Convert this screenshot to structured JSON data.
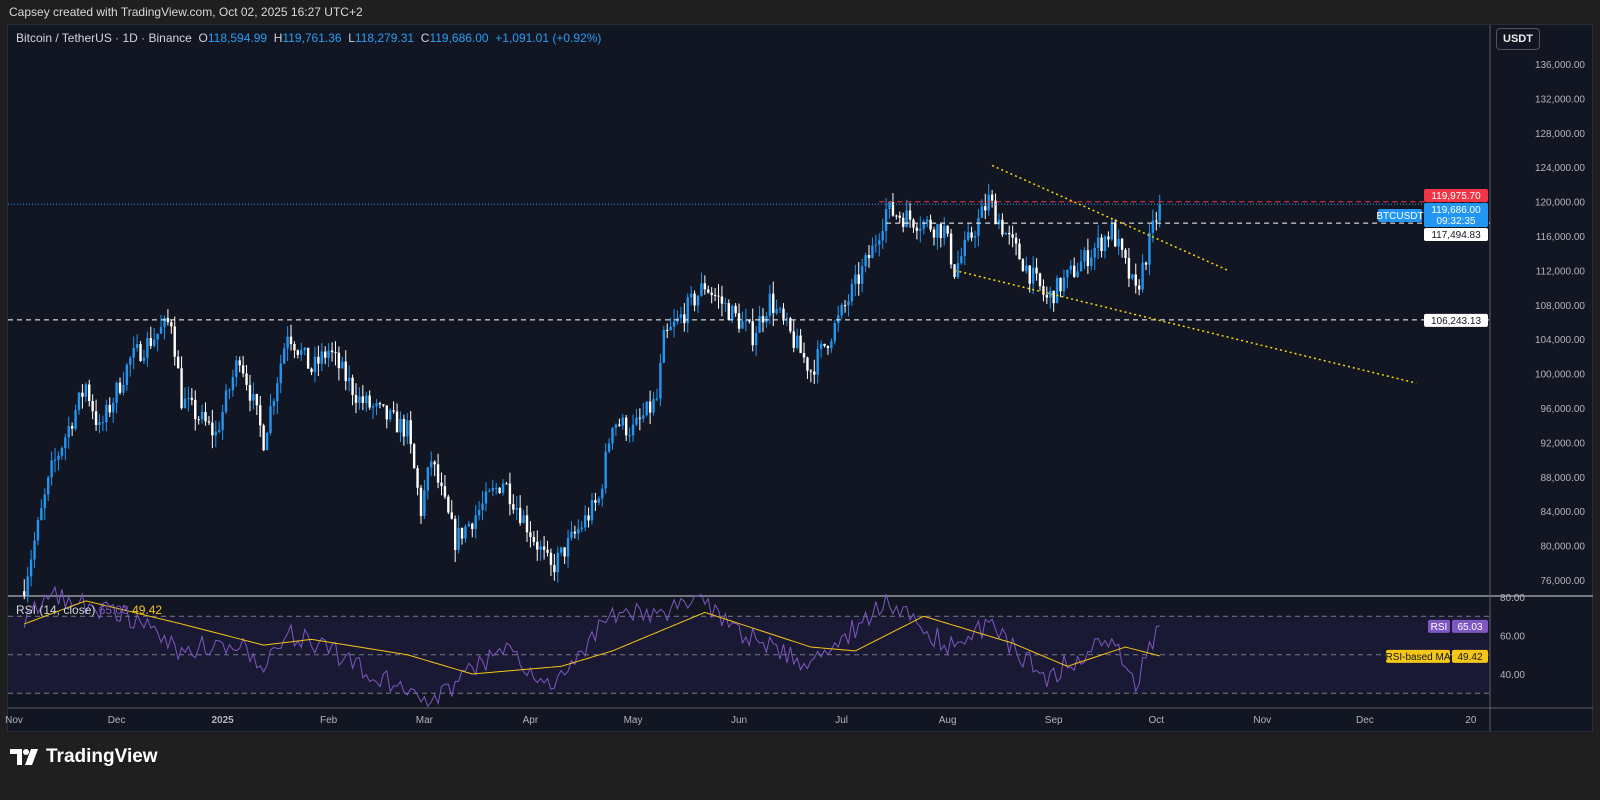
{
  "credit": "Capsey created with TradingView.com, Oct 02, 2025 16:27 UTC+2",
  "legend": {
    "symbol": "Bitcoin / TetherUS · 1D · Binance",
    "o_label": "O",
    "o": "118,594.99",
    "h_label": "H",
    "h": "119,761.36",
    "l_label": "L",
    "l": "118,279.31",
    "c_label": "C",
    "c": "119,686.00",
    "change": "+1,091.01 (+0.92%)"
  },
  "currency_button": "USDT",
  "rsi_legend": {
    "name": "RSI (14, close)",
    "rsi": "65.03",
    "ma": "49.42"
  },
  "price_tags": {
    "high_line": "119,975.70",
    "last": "119,686.00",
    "countdown": "09:32:35",
    "symbol": "BTCUSDT",
    "level1": "117,494.83",
    "level2": "106,243.13",
    "rsi_tag": "RSI",
    "rsi_val": "65.03",
    "ma_tag": "RSI-based MA",
    "ma_val": "49.42"
  },
  "footer": {
    "brand": "TradingView"
  },
  "colors": {
    "up": "#2196f3",
    "down": "#ffffff",
    "trendline": "#f5d90a",
    "rsi": "#7e57c2",
    "rsi_ma": "#f5c518",
    "high_line": "#f23645",
    "last": "#2196f3"
  },
  "chart_data": {
    "type": "candlestick",
    "ylim": [
      74000,
      138000
    ],
    "yticks": [
      "136,000.00",
      "132,000.00",
      "128,000.00",
      "124,000.00",
      "120,000.00",
      "116,000.00",
      "112,000.00",
      "108,000.00",
      "104,000.00",
      "100,000.00",
      "96,000.00",
      "92,000.00",
      "88,000.00",
      "84,000.00",
      "80,000.00",
      "76,000.00"
    ],
    "xticks": [
      "Nov",
      "Dec",
      "2025",
      "Feb",
      "Mar",
      "Apr",
      "May",
      "Jun",
      "Jul",
      "Aug",
      "Sep",
      "Oct",
      "Nov",
      "Dec",
      "20"
    ],
    "close_path": [
      [
        "2024-11-04",
        75500
      ],
      [
        "2024-11-12",
        88800
      ],
      [
        "2024-11-22",
        98700
      ],
      [
        "2024-11-26",
        93400
      ],
      [
        "2024-12-05",
        101600
      ],
      [
        "2024-12-17",
        106200
      ],
      [
        "2024-12-20",
        97000
      ],
      [
        "2024-12-30",
        92900
      ],
      [
        "2025-01-06",
        102200
      ],
      [
        "2025-01-13",
        92300
      ],
      [
        "2025-01-20",
        105000
      ],
      [
        "2025-01-27",
        100400
      ],
      [
        "2025-02-01",
        102700
      ],
      [
        "2025-02-10",
        97000
      ],
      [
        "2025-02-24",
        93400
      ],
      [
        "2025-02-28",
        84100
      ],
      [
        "2025-03-03",
        90000
      ],
      [
        "2025-03-10",
        80600
      ],
      [
        "2025-03-24",
        87600
      ],
      [
        "2025-04-07",
        77200
      ],
      [
        "2025-04-21",
        85300
      ],
      [
        "2025-04-25",
        94600
      ],
      [
        "2025-05-01",
        93400
      ],
      [
        "2025-05-08",
        97000
      ],
      [
        "2025-05-10",
        103900
      ],
      [
        "2025-05-22",
        110300
      ],
      [
        "2025-06-05",
        104500
      ],
      [
        "2025-06-10",
        108600
      ],
      [
        "2025-06-22",
        100400
      ],
      [
        "2025-06-30",
        106200
      ],
      [
        "2025-07-10",
        114400
      ],
      [
        "2025-07-14",
        119000
      ],
      [
        "2025-07-31",
        116700
      ],
      [
        "2025-08-03",
        112000
      ],
      [
        "2025-08-13",
        120200
      ],
      [
        "2025-08-19",
        115500
      ],
      [
        "2025-08-30",
        108600
      ],
      [
        "2025-09-18",
        116700
      ],
      [
        "2025-09-25",
        109300
      ],
      [
        "2025-10-02",
        119686
      ]
    ],
    "rsi_path": [
      [
        "2024-11-04",
        70
      ],
      [
        "2024-11-12",
        82
      ],
      [
        "2024-11-22",
        76
      ],
      [
        "2024-12-05",
        70
      ],
      [
        "2024-12-20",
        52
      ],
      [
        "2025-01-06",
        58
      ],
      [
        "2025-01-13",
        45
      ],
      [
        "2025-01-20",
        62
      ],
      [
        "2025-02-10",
        45
      ],
      [
        "2025-02-28",
        24
      ],
      [
        "2025-03-10",
        35
      ],
      [
        "2025-03-24",
        52
      ],
      [
        "2025-04-07",
        36
      ],
      [
        "2025-04-25",
        70
      ],
      [
        "2025-05-22",
        76
      ],
      [
        "2025-06-05",
        58
      ],
      [
        "2025-06-22",
        44
      ],
      [
        "2025-07-14",
        78
      ],
      [
        "2025-08-03",
        52
      ],
      [
        "2025-08-13",
        66
      ],
      [
        "2025-08-30",
        38
      ],
      [
        "2025-09-18",
        60
      ],
      [
        "2025-09-25",
        36
      ],
      [
        "2025-10-02",
        65.03
      ]
    ],
    "rsi_ma_path": [
      [
        "2024-11-04",
        66
      ],
      [
        "2024-11-22",
        78
      ],
      [
        "2024-12-20",
        66
      ],
      [
        "2025-01-13",
        55
      ],
      [
        "2025-01-27",
        58
      ],
      [
        "2025-02-24",
        50
      ],
      [
        "2025-03-15",
        40
      ],
      [
        "2025-04-10",
        44
      ],
      [
        "2025-04-25",
        52
      ],
      [
        "2025-05-22",
        72
      ],
      [
        "2025-06-22",
        54
      ],
      [
        "2025-07-05",
        52
      ],
      [
        "2025-07-25",
        70
      ],
      [
        "2025-08-20",
        56
      ],
      [
        "2025-09-05",
        44
      ],
      [
        "2025-09-22",
        54
      ],
      [
        "2025-10-02",
        49.42
      ]
    ],
    "rsi_levels": [
      70,
      50,
      30
    ],
    "rsi_ticks": [
      "80.00",
      "60.00",
      "40.00"
    ],
    "horizontal_levels": [
      117494.83,
      106243.13
    ],
    "trendlines": [
      {
        "from": [
          "2025-08-14",
          124200
        ],
        "to": [
          "2025-10-22",
          112000
        ]
      },
      {
        "from": [
          "2025-08-03",
          112000
        ],
        "to": [
          "2025-12-16",
          98900
        ]
      }
    ]
  }
}
